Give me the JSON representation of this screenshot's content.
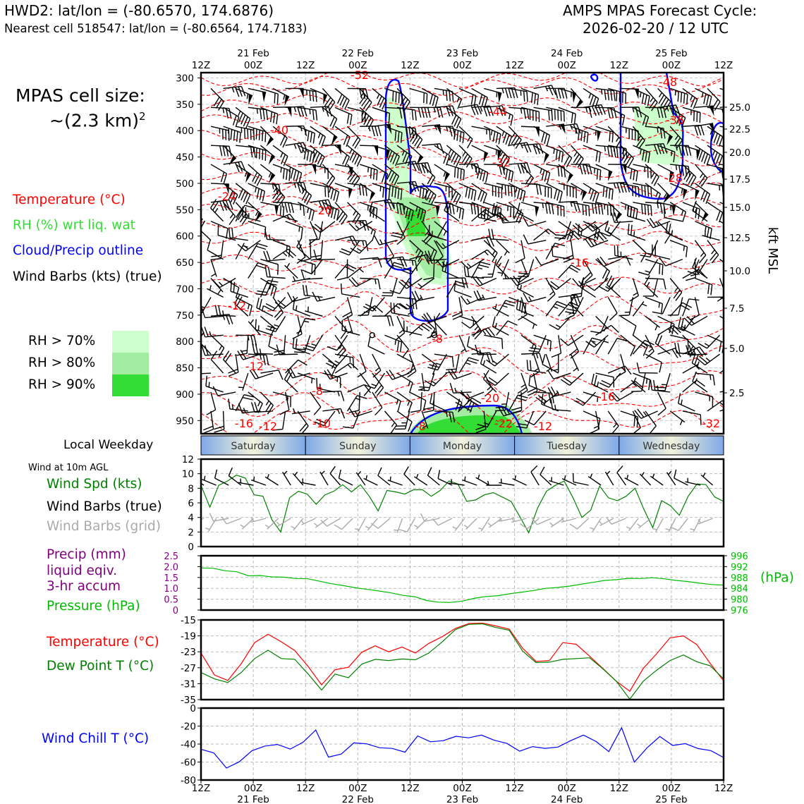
{
  "header": {
    "station_line": "HWD2: lat/lon = (-80.6570, 174.6876)",
    "nearest_line": "Nearest cell 518547: lat/lon = (-80.6564, 174.7183)",
    "cycle_title": "AMPS MPAS Forecast Cycle:",
    "cycle_date": "2026-02-20 / 12 UTC"
  },
  "cell_size": {
    "line1": "MPAS cell size:",
    "line2": "~(2.3 km)",
    "sup": "2"
  },
  "legend": {
    "temperature": "Temperature (°C)",
    "rh": "RH (%) wrt liq. wat",
    "cloud": "Cloud/Precip outline",
    "wind": "Wind Barbs (kts) (true)",
    "rh_levels": [
      {
        "label": "RH > 70%",
        "color": "#ccffcc"
      },
      {
        "label": "RH > 80%",
        "color": "#a3eda3"
      },
      {
        "label": "RH > 90%",
        "color": "#33dd33"
      }
    ]
  },
  "colors": {
    "temp": "#ff0000",
    "rh": "#33dd33",
    "cloud": "#0000ff",
    "wind": "#000000",
    "grid_wind": "#aaaaaa",
    "speed": "#008000",
    "pressure": "#00bb00",
    "precip": "#800080",
    "dew": "#008000",
    "chill": "#0000ff"
  },
  "time_axis": {
    "hour_labels": [
      "12Z",
      "00Z",
      "12Z",
      "00Z",
      "12Z",
      "00Z",
      "12Z",
      "00Z",
      "12Z",
      "00Z",
      "12Z"
    ],
    "date_labels": [
      "21 Feb",
      "22 Feb",
      "23 Feb",
      "24 Feb",
      "25 Feb"
    ]
  },
  "weekday": {
    "title": "Local Weekday",
    "days": [
      "Saturday",
      "Sunday",
      "Monday",
      "Tuesday",
      "Wednesday"
    ]
  },
  "kft_axis": {
    "label": "kft MSL",
    "ticks": [
      "25.0",
      "22.5",
      "20.0",
      "17.5",
      "15.0",
      "12.5",
      "10.0",
      "7.5",
      "5.0",
      "2.5"
    ]
  },
  "pressure_ticks": [
    "300",
    "350",
    "400",
    "450",
    "500",
    "550",
    "600",
    "650",
    "700",
    "750",
    "800",
    "850",
    "900",
    "950"
  ],
  "temp_contour_labels": [
    "-52",
    "-48",
    "-44",
    "-40",
    "-36",
    "-32",
    "-28",
    "-24",
    "-20",
    "-16",
    "-12",
    "-8",
    "-12",
    "-8",
    "-16",
    "-20",
    "-16",
    "-12",
    "-10",
    "-8",
    "-22",
    "-12",
    "-32"
  ],
  "wind_panel": {
    "subtitle": "Wind at 10m AGL",
    "labels": [
      "Wind Spd (kts)",
      "Wind Barbs (true)",
      "Wind Barbs (grid)"
    ],
    "yticks": [
      "0",
      "2",
      "4",
      "6",
      "8",
      "10",
      "12"
    ]
  },
  "precip_panel": {
    "labels": [
      "Precip (mm)",
      "liquid eqiv.",
      "3-hr accum",
      "Pressure (hPa)"
    ],
    "left_ticks": [
      "0",
      "0.5",
      "1.0",
      "1.5",
      "2.0",
      "2.5"
    ],
    "right_ticks": [
      "976",
      "980",
      "984",
      "988",
      "992",
      "996"
    ],
    "right_unit": "(hPa)"
  },
  "temp_panel": {
    "labels": [
      "Temperature (°C)",
      "Dew Point T (°C)"
    ],
    "yticks": [
      "-35",
      "-31",
      "-27",
      "-23",
      "-19",
      "-15"
    ]
  },
  "chill_panel": {
    "label": "Wind Chill T (°C)",
    "yticks": [
      "-80",
      "-60",
      "-40",
      "-20",
      "0"
    ]
  },
  "chart_data": [
    {
      "type": "heatmap",
      "title": "",
      "ylabel": "",
      "ylim": [
        975,
        290
      ],
      "x_range_hours": [
        0,
        120
      ],
      "note_axis": "x in forecast hours from 2026-02-20 12Z",
      "right_axis": "kft MSL"
    },
    {
      "type": "line",
      "title": "",
      "series": [
        {
          "name": "Wind Spd (kts)",
          "values": [
            8.4,
            5.4,
            8.4,
            9.0,
            9.8,
            9.4,
            7.1,
            6.9,
            3.7,
            2.0,
            6.7,
            7.6,
            7.2,
            5.8,
            7.1,
            7.6,
            8.5,
            7.5,
            8.5,
            6.9,
            4.9,
            7.7,
            7.5,
            7.2,
            7.8,
            7.8,
            6.9,
            7.7,
            9.0,
            8.6,
            6.2,
            6.4,
            7.1,
            7.4,
            6.8,
            6.2,
            4.1,
            1.9,
            5.3,
            7.6,
            8.4,
            9.0,
            6.7,
            4.0,
            5.0,
            8.3,
            6.7,
            6.3,
            6.9,
            8.0,
            5.1,
            2.6,
            6.3,
            5.6,
            4.3,
            6.9,
            8.6,
            8.5,
            6.8,
            6.2
          ]
        }
      ],
      "ylim": [
        0,
        12
      ]
    },
    {
      "type": "line",
      "title": "",
      "series": [
        {
          "name": "Pressure (hPa)",
          "values": [
            991.5,
            991.4,
            990.5,
            990.1,
            988.6,
            988.7,
            988.2,
            988.1,
            987.6,
            987.5,
            986.6,
            985.7,
            985.0,
            984.2,
            983.6,
            983.0,
            982.3,
            981.4,
            980.9,
            979.5,
            978.9,
            978.8,
            979.3,
            980.3,
            981.0,
            981.3,
            982.0,
            982.6,
            983.2,
            984.0,
            984.3,
            984.8,
            985.5,
            986.2,
            986.9,
            987.2,
            987.7,
            987.6,
            987.9,
            987.5,
            986.9,
            986.5,
            985.9,
            985.4,
            985.2
          ]
        }
      ],
      "left_axis_ylim": [
        0,
        2.5
      ],
      "ylim": [
        976,
        996
      ]
    },
    {
      "type": "line",
      "title": "",
      "series": [
        {
          "name": "Temperature (°C)",
          "values": [
            -23.3,
            -28.8,
            -30.2,
            -26.0,
            -20.7,
            -18.6,
            -20.5,
            -22.7,
            -26.7,
            -31.3,
            -27.5,
            -26.9,
            -23.1,
            -21.5,
            -23.0,
            -21.8,
            -23.3,
            -20.9,
            -19.2,
            -17.1,
            -15.9,
            -15.8,
            -16.5,
            -17.3,
            -22.1,
            -25.4,
            -25.2,
            -20.7,
            -21.1,
            -24.1,
            -27.2,
            -30.4,
            -32.9,
            -27.2,
            -23.5,
            -19.5,
            -19.0,
            -21.2,
            -25.9,
            -30.3
          ]
        },
        {
          "name": "Dew Point T (°C)",
          "values": [
            -28.2,
            -29.8,
            -30.7,
            -28.2,
            -24.7,
            -22.6,
            -24.7,
            -24.9,
            -28.6,
            -32.6,
            -28.6,
            -29.5,
            -26.1,
            -24.9,
            -25.2,
            -24.8,
            -25.0,
            -23.3,
            -20.5,
            -17.4,
            -16.1,
            -16.0,
            -16.9,
            -17.6,
            -22.8,
            -25.7,
            -25.6,
            -24.9,
            -24.7,
            -24.5,
            -27.3,
            -30.4,
            -34.9,
            -30.4,
            -27.6,
            -25.2,
            -23.8,
            -25.5,
            -26.5,
            -29.8
          ]
        }
      ],
      "ylim": [
        -35,
        -15
      ]
    },
    {
      "type": "line",
      "title": "",
      "series": [
        {
          "name": "Wind Chill T (°C)",
          "values": [
            -45.8,
            -49.8,
            -66.7,
            -59.8,
            -47.4,
            -42.3,
            -40.5,
            -45.6,
            -38.0,
            -24.4,
            -54.5,
            -51.1,
            -38.7,
            -39.8,
            -44.1,
            -44.9,
            -49.0,
            -31.0,
            -37.5,
            -36.2,
            -31.4,
            -33.1,
            -30.0,
            -35.8,
            -39.3,
            -47.9,
            -42.9,
            -44.8,
            -43.4,
            -36.2,
            -30.0,
            -37.2,
            -48.4,
            -21.8,
            -60.1,
            -44.1,
            -31.6,
            -41.6,
            -39.5,
            -45.0,
            -47.3,
            -55.0
          ]
        }
      ],
      "ylim": [
        -80,
        0
      ]
    }
  ]
}
